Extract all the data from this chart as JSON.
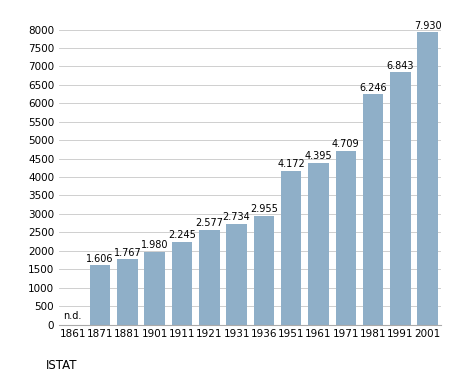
{
  "categories": [
    "1861",
    "1871",
    "1881",
    "1901",
    "1911",
    "1921",
    "1931",
    "1936",
    "1951",
    "1961",
    "1971",
    "1981",
    "1991",
    "2001"
  ],
  "values": [
    0,
    1606,
    1767,
    1980,
    2245,
    2577,
    2734,
    2955,
    4172,
    4395,
    4709,
    6246,
    6843,
    7930
  ],
  "labels": [
    "n.d.",
    "1.606",
    "1.767",
    "1.980",
    "2.245",
    "2.577",
    "2.734",
    "2.955",
    "4.172",
    "4.395",
    "4.709",
    "6.246",
    "6.843",
    "7.930"
  ],
  "bar_color": "#8FAFC8",
  "background_color": "#ffffff",
  "grid_color": "#c8c8c8",
  "ylim": [
    0,
    8500
  ],
  "yticks": [
    0,
    500,
    1000,
    1500,
    2000,
    2500,
    3000,
    3500,
    4000,
    4500,
    5000,
    5500,
    6000,
    6500,
    7000,
    7500,
    8000
  ],
  "source_label": "ISTAT",
  "label_fontsize": 7.0,
  "tick_fontsize": 7.5,
  "source_fontsize": 8.5,
  "bar_width": 0.75
}
